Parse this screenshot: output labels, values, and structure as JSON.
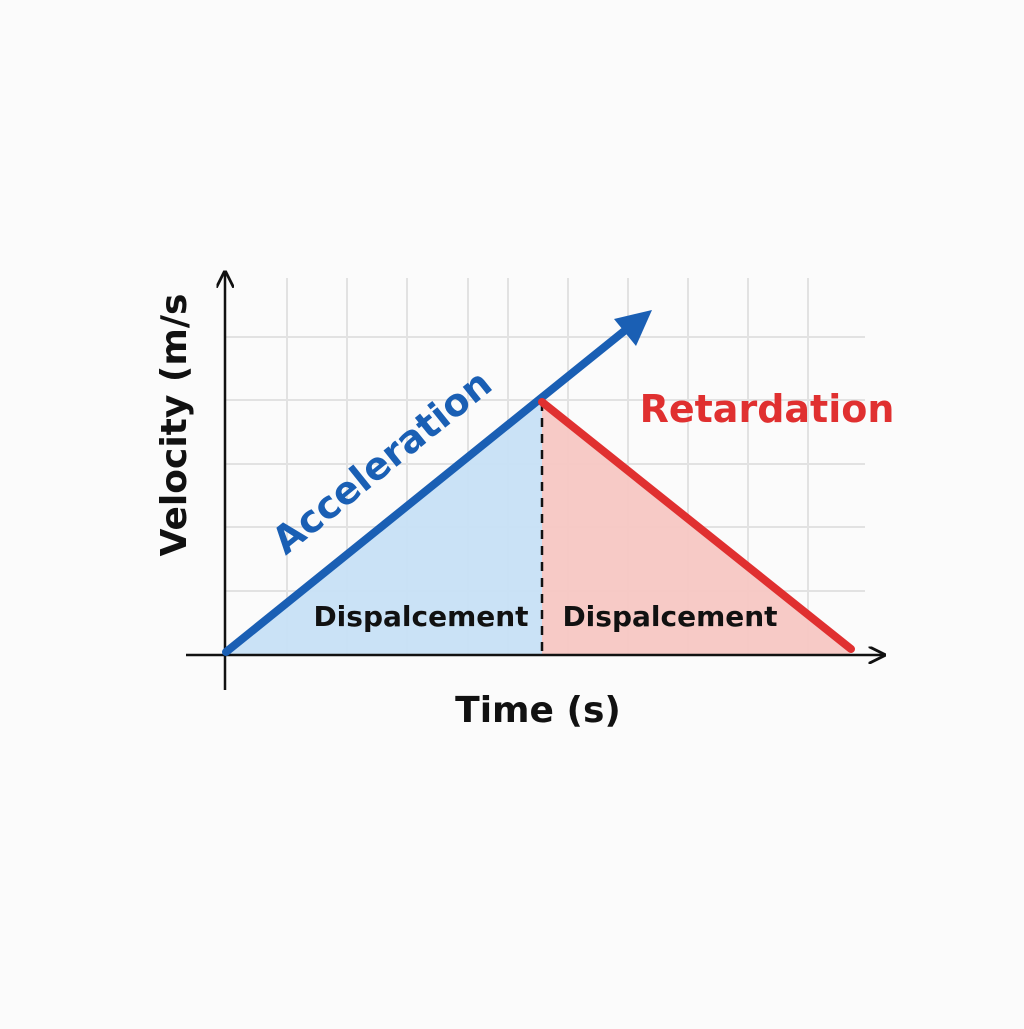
{
  "diagram": {
    "x_axis_label": "Time (s)",
    "y_axis_label": "Velocity (m/s",
    "acceleration_label": "Acceleration",
    "retardation_label": "Retardation",
    "area_label_left": "Dispalcement",
    "area_label_right": "Dispalcement"
  },
  "colors": {
    "acceleration": "#1a5fb4",
    "acceleration_fill": "#c7e0f6",
    "retardation": "#e03030",
    "retardation_fill": "#f7c7c3",
    "grid": "#e2e2e2",
    "axis": "#111111"
  }
}
